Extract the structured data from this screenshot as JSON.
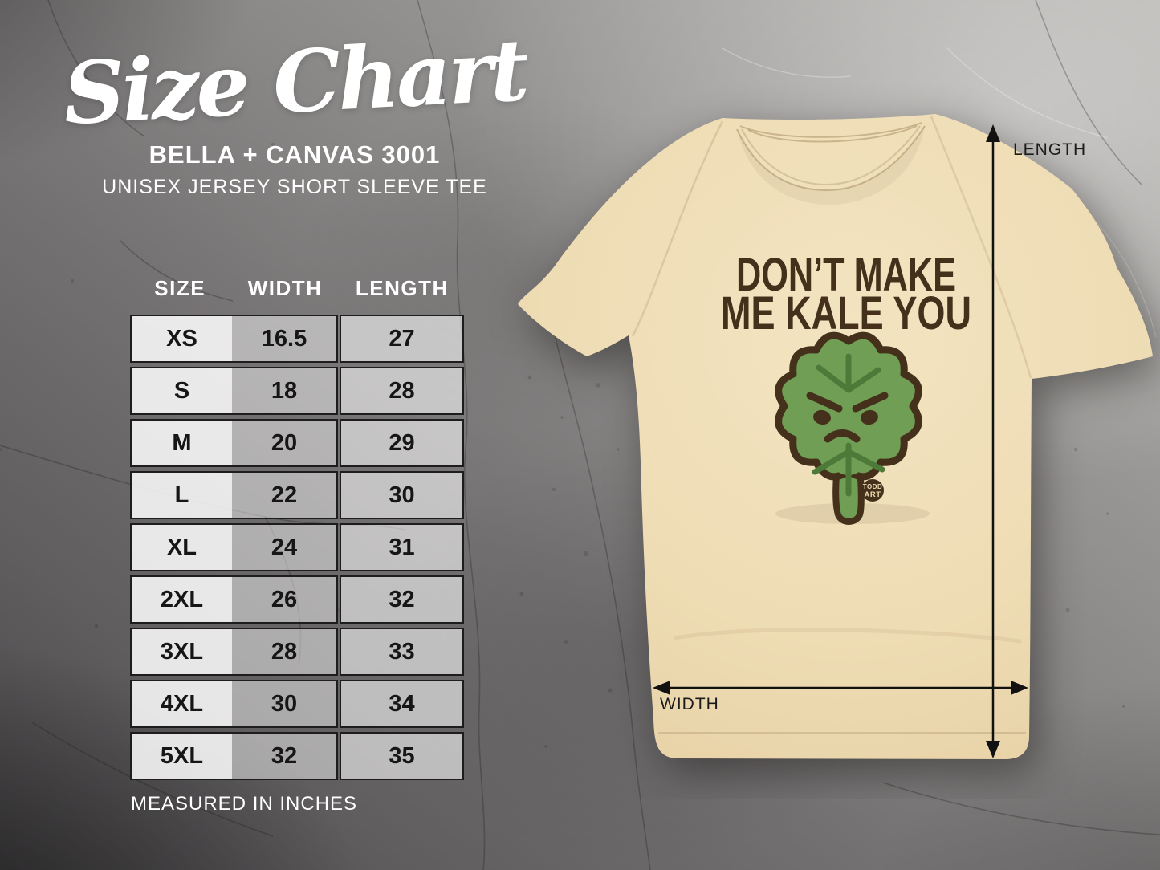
{
  "header": {
    "title": "Size Chart",
    "product": "BELLA + CANVAS 3001",
    "subtitle": "UNISEX JERSEY SHORT SLEEVE TEE"
  },
  "size_table": {
    "columns": [
      "SIZE",
      "WIDTH",
      "LENGTH"
    ],
    "rows": [
      {
        "size": "XS",
        "width": "16.5",
        "length": "27"
      },
      {
        "size": "S",
        "width": "18",
        "length": "28"
      },
      {
        "size": "M",
        "width": "20",
        "length": "29"
      },
      {
        "size": "L",
        "width": "22",
        "length": "30"
      },
      {
        "size": "XL",
        "width": "24",
        "length": "31"
      },
      {
        "size": "2XL",
        "width": "26",
        "length": "32"
      },
      {
        "size": "3XL",
        "width": "28",
        "length": "33"
      },
      {
        "size": "4XL",
        "width": "30",
        "length": "34"
      },
      {
        "size": "5XL",
        "width": "32",
        "length": "35"
      }
    ],
    "footnote": "MEASURED IN INCHES"
  },
  "chart_data": {
    "type": "table",
    "title": "Size Chart",
    "subtitle": "BELLA + CANVAS 3001 UNISEX JERSEY SHORT SLEEVE TEE",
    "columns": [
      "SIZE",
      "WIDTH",
      "LENGTH"
    ],
    "rows": [
      [
        "XS",
        "16.5",
        "27"
      ],
      [
        "S",
        "18",
        "28"
      ],
      [
        "M",
        "20",
        "29"
      ],
      [
        "L",
        "22",
        "30"
      ],
      [
        "XL",
        "24",
        "31"
      ],
      [
        "2XL",
        "26",
        "32"
      ],
      [
        "3XL",
        "28",
        "33"
      ],
      [
        "4XL",
        "30",
        "34"
      ],
      [
        "5XL",
        "32",
        "35"
      ]
    ],
    "units": "MEASURED IN INCHES"
  },
  "tshirt": {
    "design": {
      "line1": "DON’T MAKE",
      "line2": "ME KALE YOU"
    },
    "badge": {
      "line1": "TODD",
      "line2": "ART"
    },
    "measurements": {
      "length_label": "LENGTH",
      "width_label": "WIDTH"
    },
    "colors": {
      "shirt": "#eedcb4",
      "design_text": "#44301b",
      "kale_fill": "#6f9e54",
      "kale_outline": "#44301b",
      "kale_vein": "#4d7a39",
      "arrow": "#111111"
    }
  }
}
